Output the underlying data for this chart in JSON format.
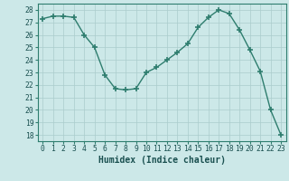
{
  "x": [
    0,
    1,
    2,
    3,
    4,
    5,
    6,
    7,
    8,
    9,
    10,
    11,
    12,
    13,
    14,
    15,
    16,
    17,
    18,
    19,
    20,
    21,
    22,
    23
  ],
  "y": [
    27.3,
    27.5,
    27.5,
    27.4,
    26.0,
    25.0,
    22.8,
    21.7,
    21.6,
    21.7,
    23.0,
    23.4,
    24.0,
    24.6,
    25.3,
    26.6,
    27.4,
    28.0,
    27.7,
    26.4,
    24.8,
    23.1,
    20.0,
    18.0
  ],
  "bg_color": "#cce8e8",
  "grid_color_major": "#aacccc",
  "line_color": "#2e7d6e",
  "marker_color": "#2e7d6e",
  "xlabel": "Humidex (Indice chaleur)",
  "ylim": [
    17.5,
    28.5
  ],
  "xlim": [
    -0.5,
    23.5
  ],
  "yticks": [
    18,
    19,
    20,
    21,
    22,
    23,
    24,
    25,
    26,
    27,
    28
  ],
  "xticks": [
    0,
    1,
    2,
    3,
    4,
    5,
    6,
    7,
    8,
    9,
    10,
    11,
    12,
    13,
    14,
    15,
    16,
    17,
    18,
    19,
    20,
    21,
    22,
    23
  ],
  "tick_label_fontsize": 5.8,
  "xlabel_fontsize": 7.0,
  "line_width": 1.0,
  "marker_size": 4
}
